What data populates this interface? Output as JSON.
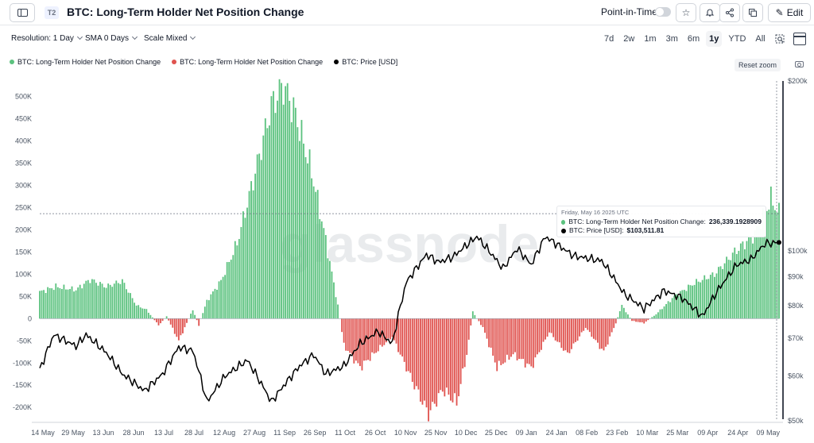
{
  "header": {
    "tier_badge": "T2",
    "title": "BTC: Long-Term Holder Net Position Change",
    "point_in_time_label": "Point-in-Time",
    "edit_label": "Edit"
  },
  "controls": {
    "resolution": "Resolution: 1 Day",
    "sma": "SMA 0 Days",
    "scale": "Scale Mixed",
    "ranges": [
      "7d",
      "2w",
      "1m",
      "3m",
      "6m",
      "1y",
      "YTD",
      "All"
    ],
    "active_range": "1y"
  },
  "reset_zoom_label": "Reset zoom",
  "tooltip": {
    "date": "Friday, May 16 2025 UTC",
    "npc_label": "BTC: Long-Term Holder Net Position Change:",
    "npc_value": "236,339.1928909",
    "price_label": "BTC: Price [USD]:",
    "price_value": "$103,511.81"
  },
  "watermark": "glassnode",
  "colors": {
    "positive": "#5cc27f",
    "negative": "#e0534f",
    "price": "#000000"
  },
  "chart_data": {
    "type": "bar",
    "title": "BTC: Long-Term Holder Net Position Change",
    "legend": [
      {
        "name": "BTC: Long-Term Holder Net Position Change",
        "color": "#5cc27f"
      },
      {
        "name": "BTC: Long-Term Holder Net Position Change",
        "color": "#e0534f"
      },
      {
        "name": "BTC: Price [USD]",
        "color": "#000000"
      }
    ],
    "legend_position": "top-left",
    "grid": false,
    "x_tick_labels": [
      "14 May",
      "29 May",
      "13 Jun",
      "28 Jun",
      "13 Jul",
      "28 Jul",
      "12 Aug",
      "27 Aug",
      "11 Sep",
      "26 Sep",
      "11 Oct",
      "26 Oct",
      "10 Nov",
      "25 Nov",
      "10 Dec",
      "25 Dec",
      "09 Jan",
      "24 Jan",
      "08 Feb",
      "23 Feb",
      "10 Mar",
      "25 Mar",
      "09 Apr",
      "24 Apr",
      "09 May"
    ],
    "x_range": [
      "2024-05-14",
      "2025-05-16"
    ],
    "left_axis": {
      "ticks": [
        -200000,
        -150000,
        -100000,
        -50000,
        0,
        50000,
        100000,
        150000,
        200000,
        250000,
        300000,
        350000,
        400000,
        450000,
        500000
      ],
      "tick_labels": [
        "-200K",
        "-150K",
        "-100K",
        "-50K",
        "0",
        "50K",
        "100K",
        "150K",
        "200K",
        "250K",
        "300K",
        "350K",
        "400K",
        "450K",
        "500K"
      ],
      "range": [
        -230000,
        535000
      ]
    },
    "right_axis": {
      "scale": "log",
      "ticks": [
        50000,
        60000,
        70000,
        80000,
        90000,
        100000,
        200000
      ],
      "tick_labels": [
        "$50k",
        "$60k",
        "$70k",
        "$80k",
        "$90k",
        "$100k",
        "$200k"
      ],
      "range": [
        50000,
        200000
      ]
    },
    "net_position_change_anchors": [
      {
        "date": "2024-05-14",
        "value": 60000
      },
      {
        "date": "2024-05-22",
        "value": 72000
      },
      {
        "date": "2024-06-01",
        "value": 65000
      },
      {
        "date": "2024-06-08",
        "value": 88000
      },
      {
        "date": "2024-06-16",
        "value": 72000
      },
      {
        "date": "2024-06-24",
        "value": 85000
      },
      {
        "date": "2024-07-01",
        "value": 30000
      },
      {
        "date": "2024-07-06",
        "value": 20000
      },
      {
        "date": "2024-07-12",
        "value": -15000
      },
      {
        "date": "2024-07-16",
        "value": 5000
      },
      {
        "date": "2024-07-22",
        "value": -50000
      },
      {
        "date": "2024-07-26",
        "value": -10000
      },
      {
        "date": "2024-07-29",
        "value": 20000
      },
      {
        "date": "2024-08-01",
        "value": -15000
      },
      {
        "date": "2024-08-05",
        "value": 40000
      },
      {
        "date": "2024-08-12",
        "value": 85000
      },
      {
        "date": "2024-08-20",
        "value": 170000
      },
      {
        "date": "2024-08-29",
        "value": 330000
      },
      {
        "date": "2024-09-06",
        "value": 480000
      },
      {
        "date": "2024-09-12",
        "value": 525000
      },
      {
        "date": "2024-09-18",
        "value": 460000
      },
      {
        "date": "2024-09-26",
        "value": 330000
      },
      {
        "date": "2024-10-02",
        "value": 200000
      },
      {
        "date": "2024-10-09",
        "value": 30000
      },
      {
        "date": "2024-10-12",
        "value": -60000
      },
      {
        "date": "2024-10-20",
        "value": -110000
      },
      {
        "date": "2024-10-29",
        "value": -70000
      },
      {
        "date": "2024-11-05",
        "value": -40000
      },
      {
        "date": "2024-11-15",
        "value": -140000
      },
      {
        "date": "2024-11-23",
        "value": -215000
      },
      {
        "date": "2024-11-30",
        "value": -160000
      },
      {
        "date": "2024-12-07",
        "value": -190000
      },
      {
        "date": "2024-12-12",
        "value": -80000
      },
      {
        "date": "2024-12-15",
        "value": 15000
      },
      {
        "date": "2024-12-20",
        "value": -20000
      },
      {
        "date": "2024-12-27",
        "value": -110000
      },
      {
        "date": "2025-01-04",
        "value": -80000
      },
      {
        "date": "2025-01-13",
        "value": -110000
      },
      {
        "date": "2025-01-22",
        "value": -30000
      },
      {
        "date": "2025-01-31",
        "value": -80000
      },
      {
        "date": "2025-02-09",
        "value": -20000
      },
      {
        "date": "2025-02-18",
        "value": -75000
      },
      {
        "date": "2025-02-24",
        "value": -10000
      },
      {
        "date": "2025-02-27",
        "value": 30000
      },
      {
        "date": "2025-03-04",
        "value": -5000
      },
      {
        "date": "2025-03-10",
        "value": -10000
      },
      {
        "date": "2025-03-16",
        "value": 10000
      },
      {
        "date": "2025-03-25",
        "value": 50000
      },
      {
        "date": "2025-04-04",
        "value": 80000
      },
      {
        "date": "2025-04-14",
        "value": 100000
      },
      {
        "date": "2025-04-24",
        "value": 150000
      },
      {
        "date": "2025-05-04",
        "value": 190000
      },
      {
        "date": "2025-05-12",
        "value": 270000
      },
      {
        "date": "2025-05-16",
        "value": 236339
      }
    ],
    "price_anchors": [
      {
        "date": "2024-05-14",
        "value": 61500
      },
      {
        "date": "2024-05-21",
        "value": 71000
      },
      {
        "date": "2024-06-01",
        "value": 67800
      },
      {
        "date": "2024-06-06",
        "value": 71000
      },
      {
        "date": "2024-06-16",
        "value": 66000
      },
      {
        "date": "2024-06-24",
        "value": 60500
      },
      {
        "date": "2024-07-05",
        "value": 56500
      },
      {
        "date": "2024-07-14",
        "value": 60500
      },
      {
        "date": "2024-07-22",
        "value": 67500
      },
      {
        "date": "2024-07-29",
        "value": 66500
      },
      {
        "date": "2024-08-05",
        "value": 54000
      },
      {
        "date": "2024-08-14",
        "value": 60000
      },
      {
        "date": "2024-08-25",
        "value": 64000
      },
      {
        "date": "2024-09-06",
        "value": 54000
      },
      {
        "date": "2024-09-20",
        "value": 62500
      },
      {
        "date": "2024-09-27",
        "value": 65500
      },
      {
        "date": "2024-10-03",
        "value": 60500
      },
      {
        "date": "2024-10-12",
        "value": 62500
      },
      {
        "date": "2024-10-20",
        "value": 68500
      },
      {
        "date": "2024-10-29",
        "value": 72000
      },
      {
        "date": "2024-11-05",
        "value": 68500
      },
      {
        "date": "2024-11-12",
        "value": 88000
      },
      {
        "date": "2024-11-22",
        "value": 98500
      },
      {
        "date": "2024-11-28",
        "value": 95500
      },
      {
        "date": "2024-12-05",
        "value": 97500
      },
      {
        "date": "2024-12-17",
        "value": 106000
      },
      {
        "date": "2024-12-30",
        "value": 93000
      },
      {
        "date": "2025-01-06",
        "value": 101000
      },
      {
        "date": "2025-01-13",
        "value": 94500
      },
      {
        "date": "2025-01-20",
        "value": 106000
      },
      {
        "date": "2025-02-03",
        "value": 98000
      },
      {
        "date": "2025-02-17",
        "value": 96000
      },
      {
        "date": "2025-02-28",
        "value": 84000
      },
      {
        "date": "2025-03-10",
        "value": 79000
      },
      {
        "date": "2025-03-20",
        "value": 85000
      },
      {
        "date": "2025-03-29",
        "value": 82500
      },
      {
        "date": "2025-04-08",
        "value": 76500
      },
      {
        "date": "2025-04-15",
        "value": 84500
      },
      {
        "date": "2025-04-25",
        "value": 94500
      },
      {
        "date": "2025-05-02",
        "value": 96500
      },
      {
        "date": "2025-05-09",
        "value": 103000
      },
      {
        "date": "2025-05-16",
        "value": 103512
      }
    ]
  }
}
